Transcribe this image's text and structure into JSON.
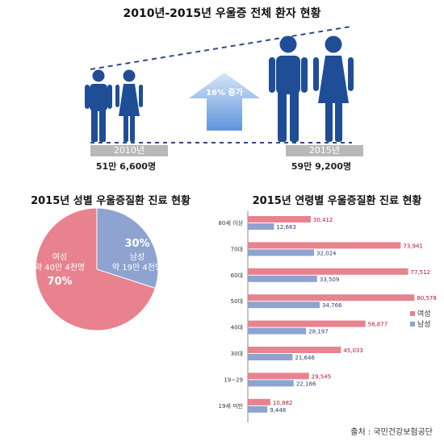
{
  "top_infographic": {
    "title": "2010년-2015년 우울증 전체 환자 현황",
    "increase_text": "16% 증가",
    "left": {
      "year": "2010년",
      "count": "51만 6,600명"
    },
    "right": {
      "year": "2015년",
      "count": "59만 9,200명"
    },
    "colors": {
      "person": "#1f4e97",
      "arrow_top": "#c9dbf3",
      "arrow_bottom": "#6fa0de",
      "dashed_line": "#2f4a8f"
    },
    "icons": [
      "man-icon",
      "woman-icon",
      "up-arrow-icon"
    ]
  },
  "chart_data": [
    {
      "type": "pie",
      "title": "2015년 성별 우울증질환 진료 현황",
      "slices": [
        {
          "name": "여성",
          "detail": "약 40만 4천명",
          "percent_label": "70%",
          "value": 70,
          "color": "#e8828e"
        },
        {
          "name": "남성",
          "detail": "약 19만 4천명",
          "percent_label": "30%",
          "value": 30,
          "color": "#8ea3cf"
        }
      ]
    },
    {
      "type": "bar",
      "orientation": "horizontal",
      "title": "2015년 연령별 우울증질환 진료 현황",
      "categories": [
        "80세 이상",
        "70대",
        "60대",
        "50대",
        "40대",
        "30대",
        "19~29",
        "19세 미만"
      ],
      "series": [
        {
          "name": "여성",
          "color": "#e8828e",
          "values": [
            30412,
            73941,
            77512,
            80578,
            56877,
            45033,
            29545,
            10882
          ],
          "labels": [
            "30,412",
            "73,941",
            "77,512",
            "80,578",
            "56,877",
            "45,033",
            "29,545",
            "10,882"
          ]
        },
        {
          "name": "남성",
          "color": "#8ea3cf",
          "values": [
            12663,
            32024,
            33509,
            34766,
            28197,
            21646,
            22186,
            9448
          ],
          "labels": [
            "12,663",
            "32,024",
            "33,509",
            "34,766",
            "28,197",
            "21,646",
            "22,186",
            "9,448"
          ]
        }
      ],
      "legend": [
        "여성",
        "남성"
      ],
      "legend_position": "right",
      "xlim": [
        0,
        82000
      ]
    }
  ],
  "source": "출처 : 국민건강보험공단"
}
